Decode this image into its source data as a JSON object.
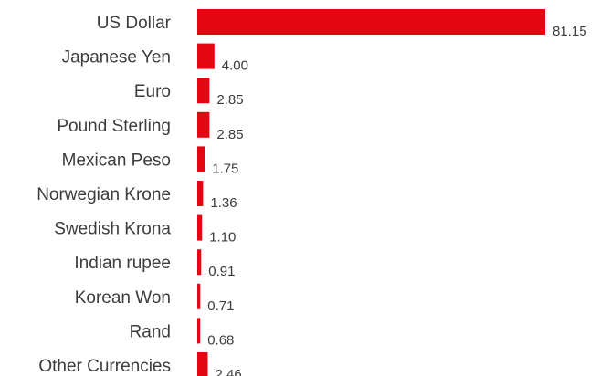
{
  "chart_data": {
    "type": "bar",
    "orientation": "horizontal",
    "categories": [
      "US Dollar",
      "Japanese Yen",
      "Euro",
      "Pound Sterling",
      "Mexican Peso",
      "Norwegian Krone",
      "Swedish Krona",
      "Indian rupee",
      "Korean Won",
      "Rand",
      "Other Currencies"
    ],
    "values": [
      81.15,
      4.0,
      2.85,
      2.85,
      1.75,
      1.36,
      1.1,
      0.91,
      0.71,
      0.68,
      2.46
    ],
    "value_labels": [
      "81.15",
      "4.00",
      "2.85",
      "2.85",
      "1.75",
      "1.36",
      "1.10",
      "0.91",
      "0.71",
      "0.68",
      "2.46"
    ],
    "bar_color": "#e30613",
    "text_color": "#3c3c3c",
    "title": "",
    "xlabel": "",
    "ylabel": "",
    "grid": false,
    "legend": "none"
  }
}
